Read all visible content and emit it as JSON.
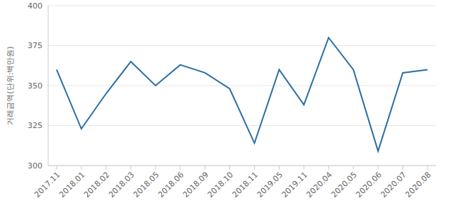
{
  "chart_data": {
    "type": "line",
    "y_label": "거래금액(단위:백만원)",
    "categories": [
      "2017.11",
      "2018.01",
      "2018.02",
      "2018.03",
      "2018.05",
      "2018.06",
      "2018.09",
      "2018.10",
      "2018.11",
      "2019.05",
      "2019.11",
      "2020.04",
      "2020.05",
      "2020.06",
      "2020.07",
      "2020.08"
    ],
    "values": [
      360,
      323,
      345,
      365,
      350,
      363,
      358,
      348,
      314,
      360,
      338,
      380,
      360,
      309,
      358,
      360
    ],
    "color": "#2a6ea6",
    "ylim": [
      300,
      400
    ],
    "yticks": [
      300,
      325,
      350,
      375,
      400
    ],
    "grid": true
  }
}
